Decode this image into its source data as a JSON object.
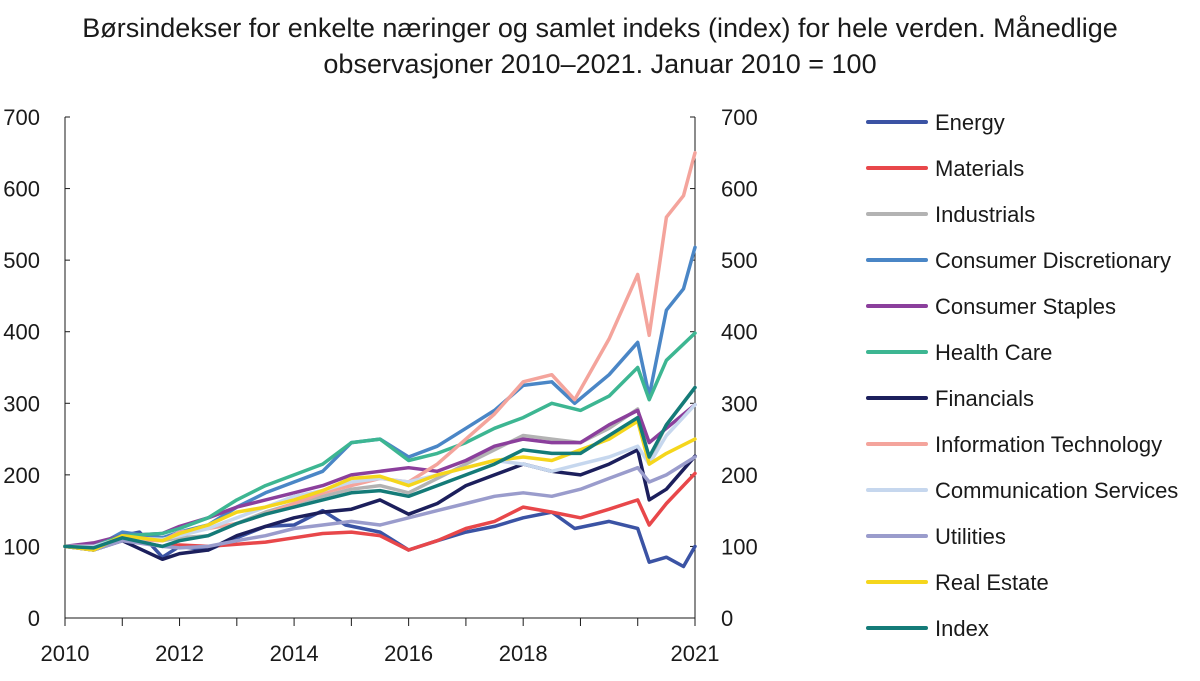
{
  "chart_data": {
    "type": "line",
    "title_line1": "Børsindekser for enkelte næringer og samlet indeks (index) for hele verden. Månedlige",
    "title_line2": "observasjoner 2010–2021. Januar 2010 = 100",
    "xlabel": "",
    "ylabel": "",
    "xlim": [
      2010,
      2021
    ],
    "ylim": [
      0,
      700
    ],
    "y_ticks": [
      "0",
      "100",
      "200",
      "300",
      "400",
      "500",
      "600",
      "700"
    ],
    "x_ticks": [
      "2010",
      "2012",
      "2014",
      "2016",
      "2018",
      "2021"
    ],
    "x_tick_values": [
      2010,
      2012,
      2014,
      2016,
      2018,
      2021
    ],
    "grid": false,
    "legend_position": "right",
    "series": [
      {
        "name": "Energy",
        "color": "#3b53a4",
        "x": [
          2010,
          2010.5,
          2011,
          2011.3,
          2011.7,
          2012,
          2012.5,
          2013,
          2013.5,
          2014,
          2014.5,
          2014.9,
          2015.5,
          2016,
          2016.5,
          2017,
          2017.5,
          2018,
          2018.5,
          2018.9,
          2019.5,
          2020,
          2020.2,
          2020.5,
          2020.8,
          2021
        ],
        "values": [
          100,
          95,
          115,
          120,
          85,
          100,
          95,
          112,
          128,
          130,
          150,
          130,
          120,
          95,
          108,
          120,
          128,
          140,
          148,
          125,
          135,
          125,
          78,
          85,
          72,
          100
        ]
      },
      {
        "name": "Materials",
        "color": "#e8474a",
        "x": [
          2010,
          2010.5,
          2011,
          2011.7,
          2012,
          2012.5,
          2013,
          2013.5,
          2014,
          2014.5,
          2015,
          2015.5,
          2016,
          2016.5,
          2017,
          2017.5,
          2018,
          2018.5,
          2019,
          2019.5,
          2020,
          2020.2,
          2020.5,
          2021
        ],
        "values": [
          100,
          98,
          110,
          100,
          102,
          100,
          103,
          106,
          112,
          118,
          120,
          115,
          95,
          108,
          125,
          135,
          155,
          148,
          140,
          152,
          165,
          130,
          160,
          202
        ]
      },
      {
        "name": "Industrials",
        "color": "#b3b3b3",
        "x": [
          2010,
          2010.5,
          2011,
          2011.7,
          2012,
          2012.5,
          2013,
          2013.5,
          2014,
          2014.5,
          2015,
          2015.5,
          2016,
          2016.5,
          2017,
          2017.5,
          2018,
          2018.5,
          2019,
          2019.5,
          2020,
          2020.2,
          2020.5,
          2021
        ],
        "values": [
          100,
          97,
          115,
          108,
          112,
          115,
          132,
          148,
          160,
          170,
          180,
          185,
          175,
          195,
          215,
          235,
          255,
          250,
          245,
          265,
          292,
          220,
          270,
          322
        ]
      },
      {
        "name": "Consumer Discretionary",
        "color": "#4a86c6",
        "x": [
          2010,
          2010.5,
          2011,
          2011.7,
          2012,
          2012.5,
          2013,
          2013.5,
          2014,
          2014.5,
          2015,
          2015.5,
          2016,
          2016.5,
          2017,
          2017.5,
          2018,
          2018.5,
          2018.9,
          2019.5,
          2020,
          2020.2,
          2020.5,
          2020.8,
          2021
        ],
        "values": [
          100,
          98,
          120,
          112,
          120,
          130,
          155,
          175,
          190,
          205,
          245,
          250,
          225,
          240,
          265,
          290,
          325,
          330,
          300,
          340,
          385,
          310,
          430,
          460,
          518
        ]
      },
      {
        "name": "Consumer Staples",
        "color": "#8b3f9c",
        "x": [
          2010,
          2010.5,
          2011,
          2011.7,
          2012,
          2012.5,
          2013,
          2013.5,
          2014,
          2014.5,
          2015,
          2015.5,
          2016,
          2016.5,
          2017,
          2017.5,
          2018,
          2018.5,
          2019,
          2019.5,
          2020,
          2020.2,
          2020.5,
          2021
        ],
        "values": [
          100,
          105,
          115,
          118,
          128,
          140,
          155,
          165,
          175,
          185,
          200,
          205,
          210,
          205,
          220,
          240,
          250,
          245,
          245,
          270,
          290,
          245,
          265,
          298
        ]
      },
      {
        "name": "Health Care",
        "color": "#3db692",
        "x": [
          2010,
          2010.5,
          2011,
          2011.7,
          2012,
          2012.5,
          2013,
          2013.5,
          2014,
          2014.5,
          2015,
          2015.5,
          2016,
          2016.5,
          2017,
          2017.5,
          2018,
          2018.5,
          2019,
          2019.5,
          2020,
          2020.2,
          2020.5,
          2021
        ],
        "values": [
          100,
          100,
          115,
          118,
          125,
          140,
          165,
          185,
          200,
          215,
          245,
          250,
          220,
          230,
          245,
          265,
          280,
          300,
          290,
          310,
          350,
          305,
          360,
          398
        ]
      },
      {
        "name": "Financials",
        "color": "#1c1f5c",
        "x": [
          2010,
          2010.5,
          2011,
          2011.7,
          2012,
          2012.5,
          2013,
          2013.5,
          2014,
          2014.5,
          2015,
          2015.5,
          2016,
          2016.5,
          2017,
          2017.5,
          2018,
          2018.5,
          2019,
          2019.5,
          2020,
          2020.2,
          2020.5,
          2021
        ],
        "values": [
          100,
          95,
          108,
          82,
          90,
          95,
          115,
          128,
          140,
          148,
          152,
          165,
          145,
          160,
          185,
          200,
          215,
          205,
          200,
          215,
          235,
          165,
          180,
          226
        ]
      },
      {
        "name": "Information Technology",
        "color": "#f4a49c",
        "x": [
          2010,
          2010.5,
          2011,
          2011.7,
          2012,
          2012.5,
          2013,
          2013.5,
          2014,
          2014.5,
          2015,
          2015.5,
          2016,
          2016.5,
          2017,
          2017.5,
          2018,
          2018.5,
          2018.9,
          2019.5,
          2020,
          2020.2,
          2020.5,
          2020.8,
          2021
        ],
        "values": [
          100,
          100,
          110,
          108,
          120,
          125,
          132,
          145,
          160,
          175,
          185,
          195,
          190,
          215,
          250,
          285,
          330,
          340,
          305,
          390,
          480,
          395,
          560,
          590,
          650
        ]
      },
      {
        "name": "Communication Services",
        "color": "#c6d7ee",
        "x": [
          2010,
          2010.5,
          2011,
          2011.7,
          2012,
          2012.5,
          2013,
          2013.5,
          2014,
          2014.5,
          2015,
          2015.5,
          2016,
          2016.5,
          2017,
          2017.5,
          2018,
          2018.5,
          2019,
          2019.5,
          2020,
          2020.2,
          2020.5,
          2021
        ],
        "values": [
          100,
          100,
          112,
          110,
          115,
          125,
          140,
          155,
          170,
          178,
          190,
          195,
          190,
          200,
          210,
          220,
          215,
          205,
          215,
          225,
          240,
          215,
          255,
          298
        ]
      },
      {
        "name": "Utilities",
        "color": "#9a9ccc",
        "x": [
          2010,
          2010.5,
          2011,
          2011.7,
          2012,
          2012.5,
          2013,
          2013.5,
          2014,
          2014.5,
          2015,
          2015.5,
          2016,
          2016.5,
          2017,
          2017.5,
          2018,
          2018.5,
          2019,
          2019.5,
          2020,
          2020.2,
          2020.5,
          2021
        ],
        "values": [
          100,
          95,
          108,
          100,
          98,
          100,
          108,
          115,
          125,
          130,
          135,
          130,
          140,
          150,
          160,
          170,
          175,
          170,
          180,
          195,
          210,
          190,
          200,
          225
        ]
      },
      {
        "name": "Real Estate",
        "color": "#f5d61c",
        "x": [
          2010,
          2010.5,
          2011,
          2011.7,
          2012,
          2012.5,
          2013,
          2013.5,
          2014,
          2014.5,
          2015,
          2015.5,
          2016,
          2016.5,
          2017,
          2017.5,
          2018,
          2018.5,
          2019,
          2019.5,
          2020,
          2020.2,
          2020.5,
          2021
        ],
        "values": [
          100,
          95,
          115,
          108,
          118,
          130,
          148,
          155,
          165,
          178,
          195,
          198,
          185,
          200,
          210,
          220,
          225,
          220,
          235,
          250,
          275,
          215,
          230,
          250
        ]
      },
      {
        "name": "Index",
        "color": "#147b78",
        "x": [
          2010,
          2010.5,
          2011,
          2011.7,
          2012,
          2012.5,
          2013,
          2013.5,
          2014,
          2014.5,
          2015,
          2015.5,
          2016,
          2016.5,
          2017,
          2017.5,
          2018,
          2018.5,
          2019,
          2019.5,
          2020,
          2020.2,
          2020.5,
          2021
        ],
        "values": [
          100,
          98,
          112,
          100,
          108,
          115,
          132,
          145,
          155,
          165,
          175,
          178,
          170,
          185,
          200,
          215,
          235,
          230,
          230,
          255,
          280,
          225,
          270,
          322
        ]
      }
    ]
  }
}
